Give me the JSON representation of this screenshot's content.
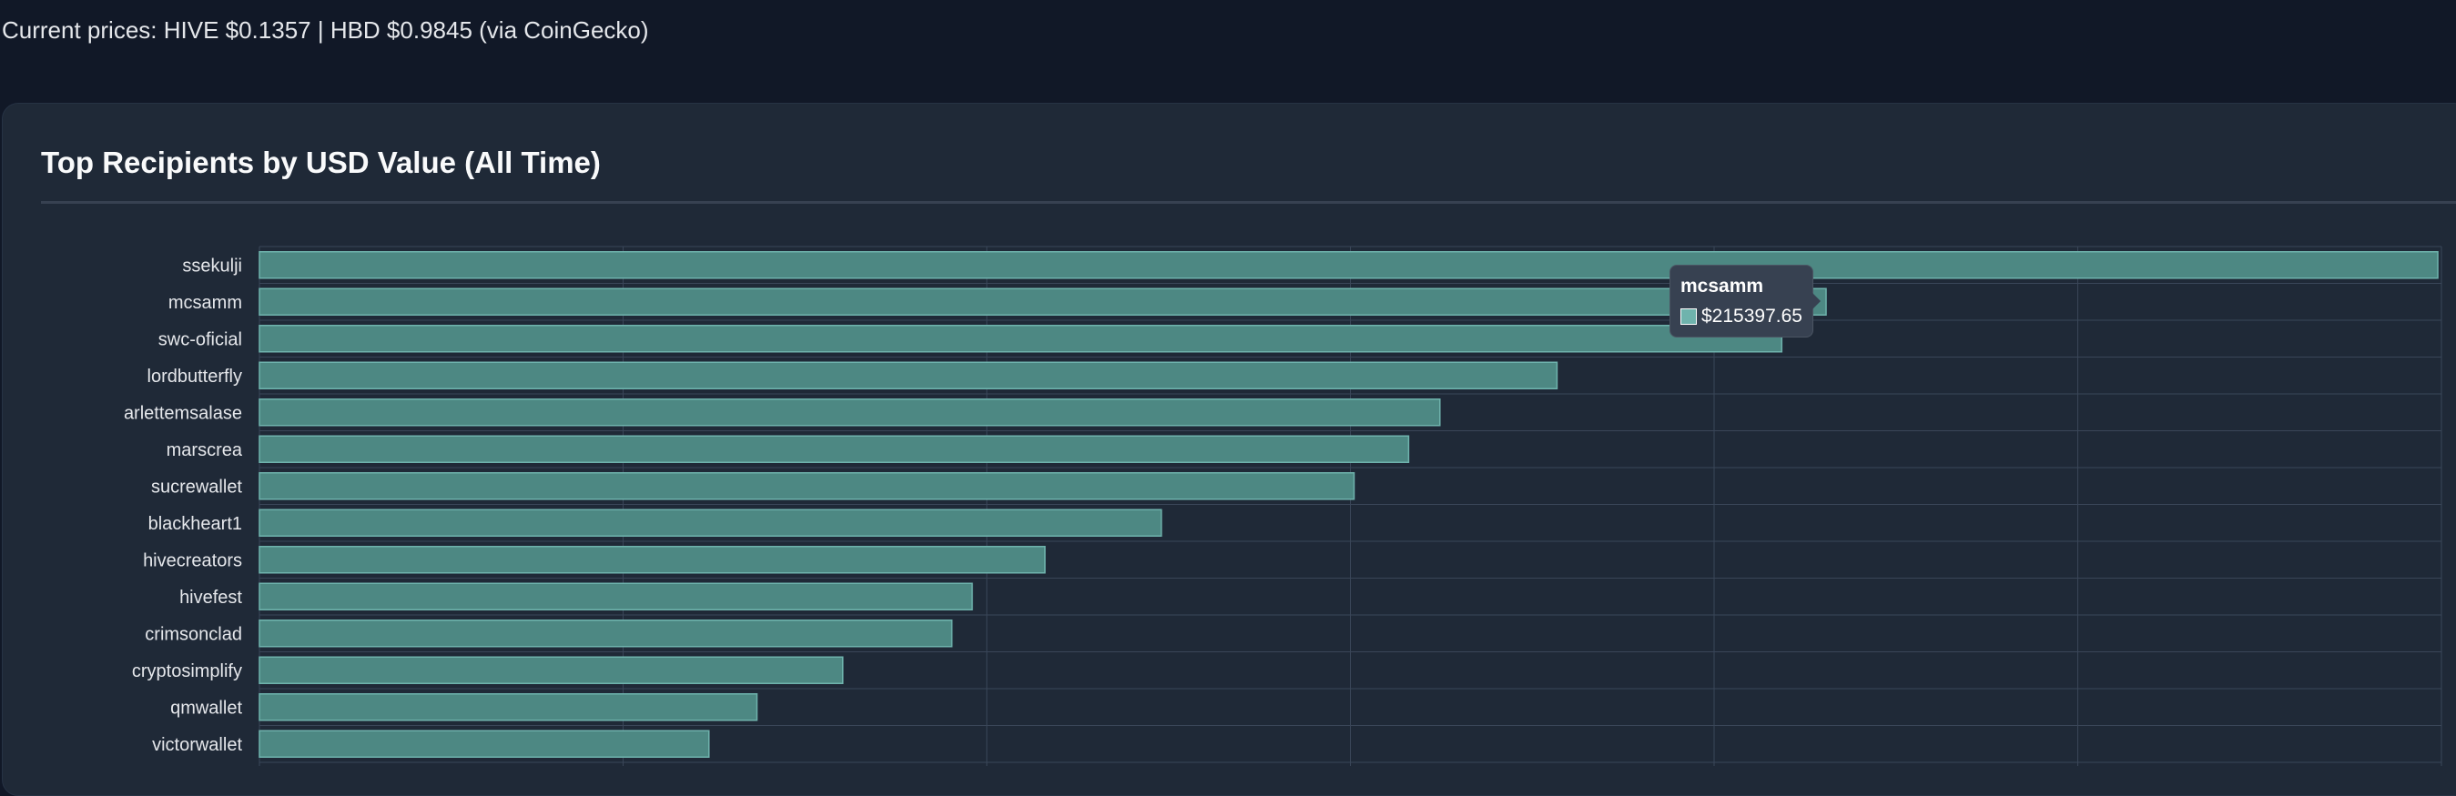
{
  "prices": {
    "text": "Current prices: HIVE $0.1357 | HBD $0.9845 (via CoinGecko)"
  },
  "card": {
    "title": "Top Recipients by USD Value (All Time)"
  },
  "chart_data": {
    "type": "bar",
    "orientation": "horizontal",
    "title": "Top Recipients by USD Value (All Time)",
    "xlabel": "",
    "ylabel": "",
    "xlim": [
      0,
      300000
    ],
    "grid": true,
    "legend": "none",
    "categories": [
      "ssekulji",
      "mcsamm",
      "swc-oficial",
      "lordbutterfly",
      "arlettemsalase",
      "marscrea",
      "sucrewallet",
      "blackheart1",
      "hivecreators",
      "hivefest",
      "crimsonclad",
      "cryptosimplify",
      "qmwallet",
      "victorwallet"
    ],
    "series": [
      {
        "name": "USD Value",
        "values": [
          299500,
          215397.65,
          209300,
          178400,
          162300,
          158000,
          150500,
          124000,
          108000,
          98000,
          95200,
          80200,
          68400,
          61800
        ]
      }
    ],
    "colors": {
      "bar_fill": "#4d8883",
      "bar_stroke": "#6fb3ad"
    }
  },
  "tooltip": {
    "title": "mcsamm",
    "value": "$215397.65",
    "swatch_color": "#6fb3ad"
  }
}
